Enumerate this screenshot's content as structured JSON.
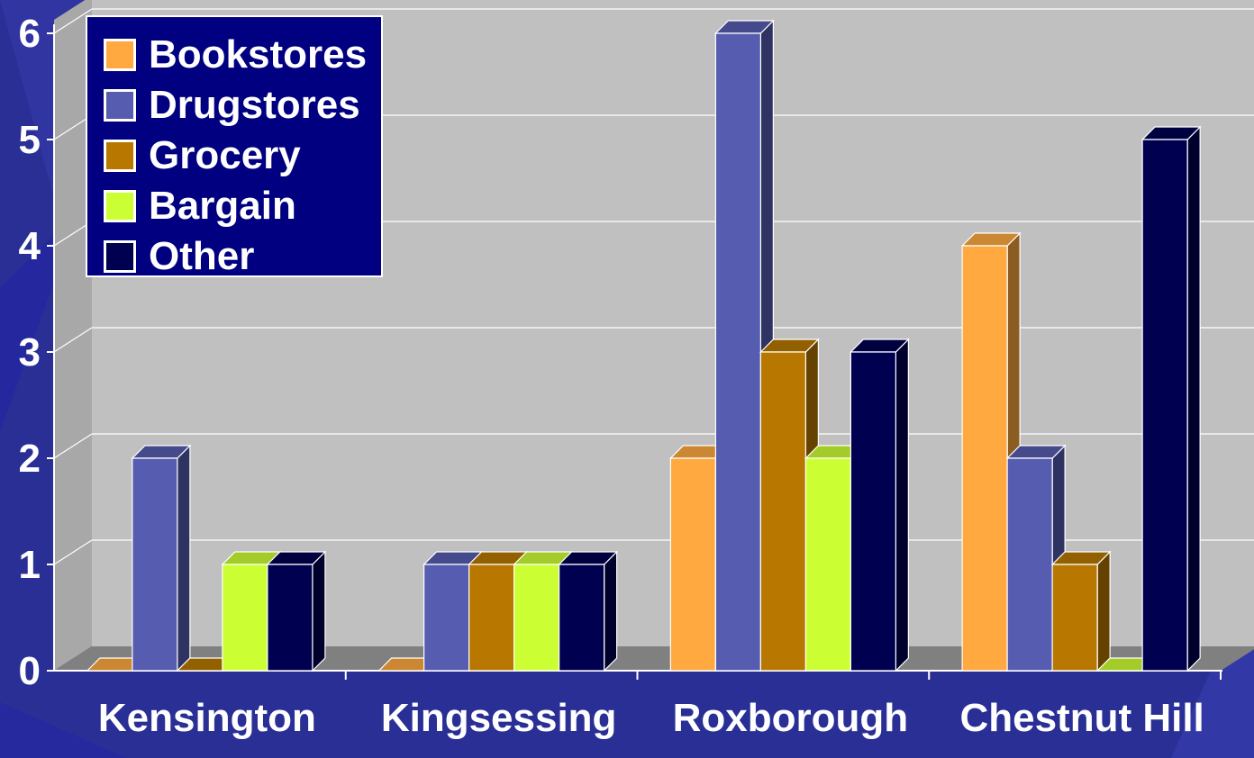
{
  "chart_data": {
    "type": "bar",
    "categories": [
      "Kensington",
      "Kingsessing",
      "Roxborough",
      "Chestnut Hill"
    ],
    "series": [
      {
        "name": "Bookstores",
        "values": [
          0,
          0,
          2,
          4
        ]
      },
      {
        "name": "Drugstores",
        "values": [
          2,
          1,
          6,
          2
        ]
      },
      {
        "name": "Grocery",
        "values": [
          0,
          1,
          3,
          1
        ]
      },
      {
        "name": "Bargain",
        "values": [
          1,
          1,
          2,
          0
        ]
      },
      {
        "name": "Other",
        "values": [
          1,
          1,
          3,
          5
        ]
      }
    ],
    "ylim": [
      0,
      6
    ],
    "y_ticks": [
      "0",
      "1",
      "2",
      "3",
      "4",
      "5",
      "6"
    ],
    "grid": true,
    "legend_position": "top-left",
    "colors": {
      "Bookstores": "#ffa940",
      "Drugstores": "#565cb0",
      "Grocery": "#b87800",
      "Bargain": "#ccff33",
      "Other": "#000050"
    },
    "background_color": "#2a2f96",
    "plot_wall_color": "#c0c0c0",
    "floor_color": "#808080"
  }
}
